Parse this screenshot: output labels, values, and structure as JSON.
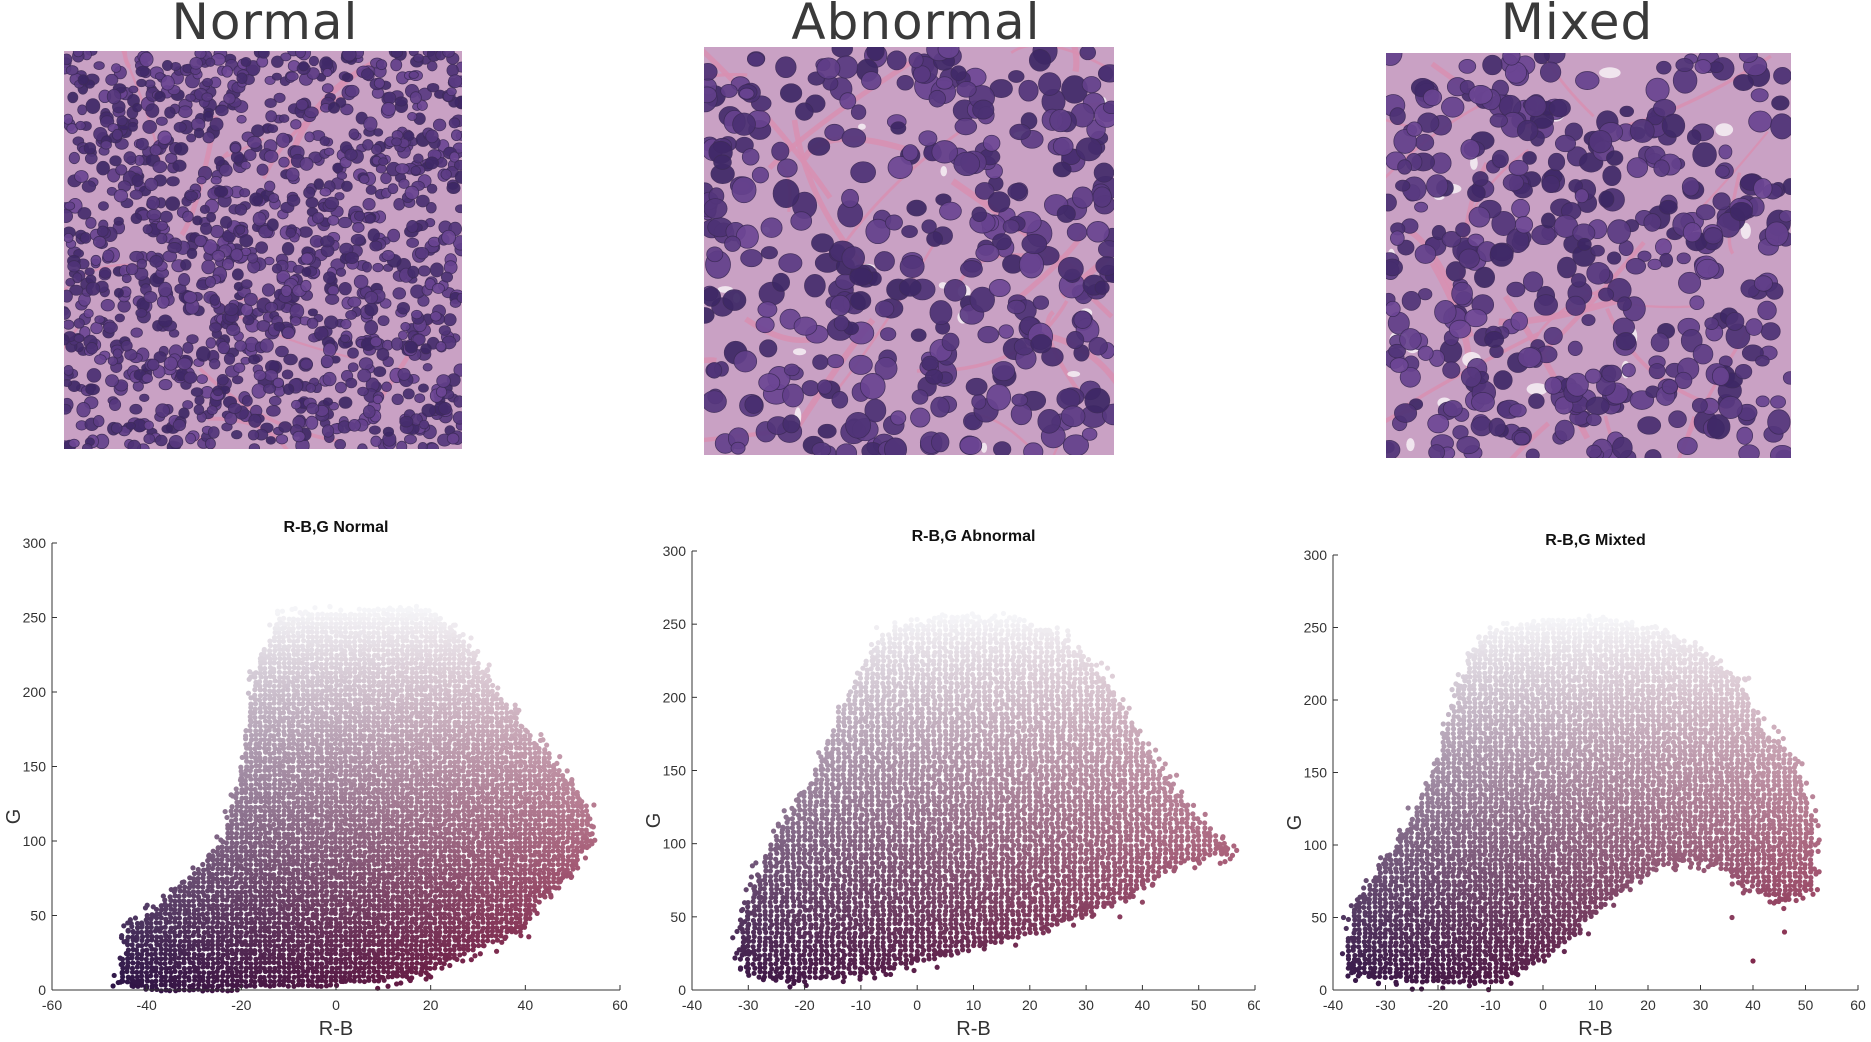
{
  "headings": [
    "Normal",
    "Abnormal",
    "Mixed"
  ],
  "chart_data": [
    {
      "type": "scatter",
      "title": "R-B,G Normal",
      "xlabel": "R-B",
      "ylabel": "G",
      "xlim": [
        -60,
        60
      ],
      "ylim": [
        0,
        300
      ],
      "xticks": [
        -60,
        -40,
        -20,
        0,
        20,
        40,
        60
      ],
      "yticks": [
        0,
        50,
        100,
        150,
        200,
        250,
        300
      ],
      "xtick_labels": [
        "-60",
        "-40",
        "-20",
        "0",
        "20",
        "40",
        "60"
      ],
      "ytick_labels": [
        "0",
        "50",
        "100",
        "150",
        "200",
        "250",
        "300"
      ],
      "region": [
        [
          -46,
          5
        ],
        [
          -44,
          40
        ],
        [
          -36,
          60
        ],
        [
          -24,
          100
        ],
        [
          -20,
          150
        ],
        [
          -17,
          215
        ],
        [
          -12,
          250
        ],
        [
          -2,
          254
        ],
        [
          12,
          256
        ],
        [
          20,
          255
        ],
        [
          28,
          232
        ],
        [
          34,
          200
        ],
        [
          40,
          175
        ],
        [
          48,
          145
        ],
        [
          54,
          120
        ],
        [
          54,
          100
        ],
        [
          50,
          80
        ],
        [
          43,
          60
        ],
        [
          40,
          40
        ],
        [
          32,
          30
        ],
        [
          20,
          12
        ],
        [
          8,
          4
        ],
        [
          -20,
          0
        ],
        [
          -40,
          0
        ]
      ],
      "outliers": [
        [
          -44,
          45
        ],
        [
          -46,
          5
        ],
        [
          -42,
          35
        ],
        [
          50,
          120
        ],
        [
          54,
          110
        ],
        [
          53,
          100
        ],
        [
          42,
          70
        ],
        [
          38,
          45
        ],
        [
          -18,
          210
        ],
        [
          -14,
          245
        ],
        [
          32,
          215
        ],
        [
          44,
          150
        ]
      ]
    },
    {
      "type": "scatter",
      "title": "R-B,G Abnormal",
      "xlabel": "R-B",
      "ylabel": "G",
      "xlim": [
        -40,
        60
      ],
      "ylim": [
        0,
        300
      ],
      "xticks": [
        -40,
        -30,
        -20,
        -10,
        0,
        10,
        20,
        30,
        40,
        50,
        60
      ],
      "yticks": [
        0,
        50,
        100,
        150,
        200,
        250,
        300
      ],
      "xtick_labels": [
        "-40",
        "-30",
        "-20",
        "-10",
        "0",
        "10",
        "20",
        "30",
        "40",
        "50",
        "60"
      ],
      "ytick_labels": [
        "0",
        "50",
        "100",
        "150",
        "200",
        "250",
        "300"
      ],
      "region": [
        [
          -32,
          35
        ],
        [
          -30,
          60
        ],
        [
          -26,
          100
        ],
        [
          -18,
          150
        ],
        [
          -12,
          205
        ],
        [
          -6,
          245
        ],
        [
          6,
          256
        ],
        [
          18,
          254
        ],
        [
          26,
          240
        ],
        [
          34,
          210
        ],
        [
          40,
          170
        ],
        [
          46,
          135
        ],
        [
          52,
          110
        ],
        [
          56,
          92
        ],
        [
          48,
          88
        ],
        [
          42,
          75
        ],
        [
          36,
          60
        ],
        [
          28,
          48
        ],
        [
          18,
          35
        ],
        [
          5,
          22
        ],
        [
          -10,
          10
        ],
        [
          -22,
          5
        ],
        [
          -30,
          10
        ]
      ],
      "outliers": [
        [
          -32,
          40
        ],
        [
          -31,
          55
        ],
        [
          56,
          92
        ],
        [
          54,
          95
        ],
        [
          50,
          88
        ],
        [
          -14,
          190
        ],
        [
          -8,
          225
        ],
        [
          40,
          60
        ],
        [
          36,
          50
        ]
      ]
    },
    {
      "type": "scatter",
      "title": "R-B,G Mixted",
      "xlabel": "R-B",
      "ylabel": "G",
      "xlim": [
        -40,
        60
      ],
      "ylim": [
        0,
        300
      ],
      "xticks": [
        -40,
        -30,
        -20,
        -10,
        0,
        10,
        20,
        30,
        40,
        50,
        60
      ],
      "yticks": [
        0,
        50,
        100,
        150,
        200,
        250,
        300
      ],
      "xtick_labels": [
        "-40",
        "-30",
        "-20",
        "-10",
        "0",
        "10",
        "20",
        "30",
        "40",
        "50",
        "60"
      ],
      "ytick_labels": [
        "0",
        "50",
        "100",
        "150",
        "200",
        "250",
        "300"
      ],
      "region": [
        [
          -38,
          20
        ],
        [
          -36,
          55
        ],
        [
          -32,
          80
        ],
        [
          -26,
          110
        ],
        [
          -20,
          160
        ],
        [
          -16,
          210
        ],
        [
          -12,
          245
        ],
        [
          0,
          255
        ],
        [
          14,
          256
        ],
        [
          24,
          245
        ],
        [
          32,
          230
        ],
        [
          38,
          210
        ],
        [
          42,
          180
        ],
        [
          48,
          160
        ],
        [
          52,
          110
        ],
        [
          52,
          70
        ],
        [
          46,
          60
        ],
        [
          40,
          70
        ],
        [
          36,
          80
        ],
        [
          30,
          90
        ],
        [
          22,
          85
        ],
        [
          12,
          60
        ],
        [
          4,
          30
        ],
        [
          -8,
          5
        ],
        [
          -24,
          5
        ],
        [
          -36,
          10
        ]
      ],
      "outliers": [
        [
          -38,
          50
        ],
        [
          -36,
          30
        ],
        [
          50,
          100
        ],
        [
          52,
          80
        ],
        [
          46,
          40
        ],
        [
          44,
          60
        ],
        [
          -18,
          190
        ],
        [
          -14,
          230
        ],
        [
          40,
          20
        ],
        [
          36,
          50
        ]
      ]
    }
  ]
}
